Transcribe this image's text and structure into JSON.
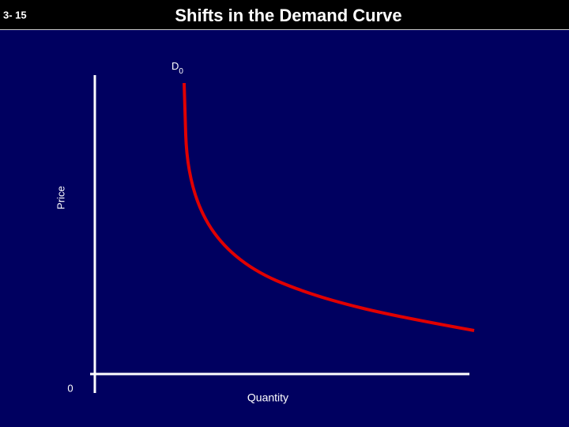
{
  "header": {
    "slide_number": "3- 15",
    "title": "Shifts in the Demand Curve"
  },
  "axes": {
    "y_label": "Price",
    "x_label": "Quantity",
    "origin": "0"
  },
  "curves": [
    {
      "label": "D",
      "subscript": "0"
    }
  ]
}
